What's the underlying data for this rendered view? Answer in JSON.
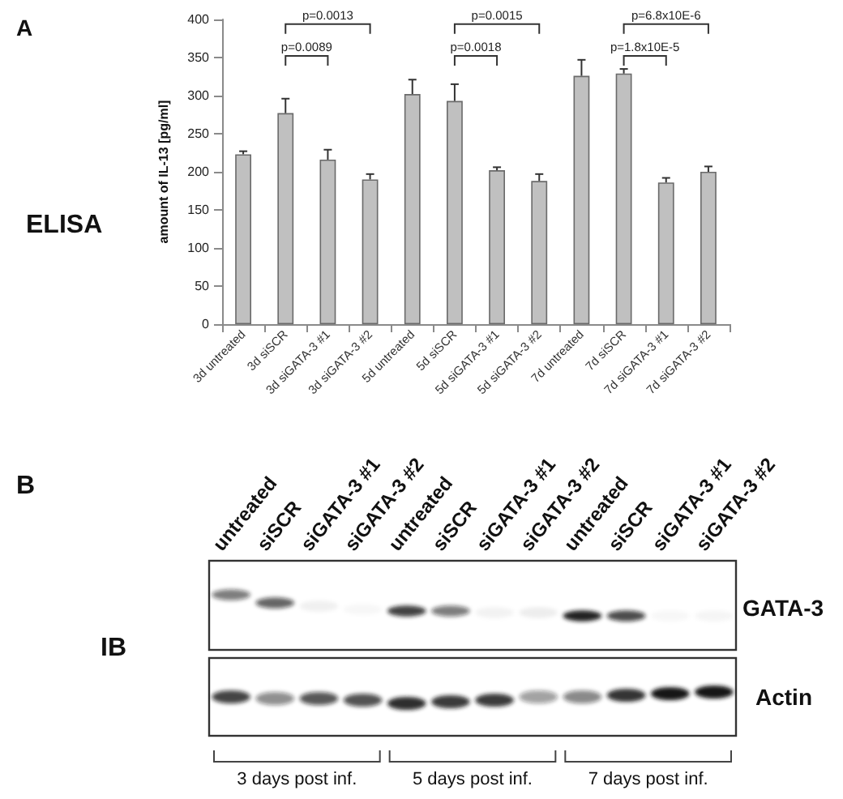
{
  "chart_data": [
    {
      "type": "bar",
      "categories": [
        "3d untreated",
        "3d siSCR",
        "3d siGATA-3 #1",
        "3d siGATA-3 #2",
        "5d untreated",
        "5d siSCR",
        "5d siGATA-3 #1",
        "5d siGATA-3 #2",
        "7d untreated",
        "7d siSCR",
        "7d siGATA-3 #1",
        "7d siGATA-3 #2"
      ],
      "values": [
        223,
        277,
        216,
        190,
        302,
        293,
        202,
        188,
        326,
        329,
        186,
        200
      ],
      "errors": [
        [
          223,
          227
        ],
        [
          277,
          296
        ],
        [
          216,
          229
        ],
        [
          190,
          197
        ],
        [
          302,
          321
        ],
        [
          293,
          315
        ],
        [
          202,
          206
        ],
        [
          188,
          197
        ],
        [
          326,
          347
        ],
        [
          329,
          335
        ],
        [
          186,
          192
        ],
        [
          200,
          207
        ]
      ],
      "color": "#c0c0c0",
      "ylabel": "amount of IL-13 [pg/ml]",
      "ylim": [
        0,
        400
      ],
      "yticks": [
        0,
        50,
        100,
        150,
        200,
        250,
        300,
        350,
        400
      ],
      "grid": false,
      "annotations": [
        "A",
        "ELISA",
        "p=0.0013",
        "p=0.0089",
        "p=0.0015",
        "p=0.0018",
        "p=6.8x10E-6",
        "p=1.8x10E-5"
      ]
    },
    {
      "type": "other",
      "categories": [
        "untreated",
        "siSCR",
        "siGATA-3 #1",
        "siGATA-3 #2",
        "untreated",
        "siSCR",
        "siGATA-3 #1",
        "siGATA-3 #2",
        "untreated",
        "siSCR",
        "siGATA-3 #1",
        "siGATA-3 #2"
      ],
      "annotations": [
        "B",
        "IB",
        "GATA-3",
        "Actin",
        "3 days post inf.",
        "5 days post inf.",
        "7 days post inf."
      ]
    }
  ]
}
